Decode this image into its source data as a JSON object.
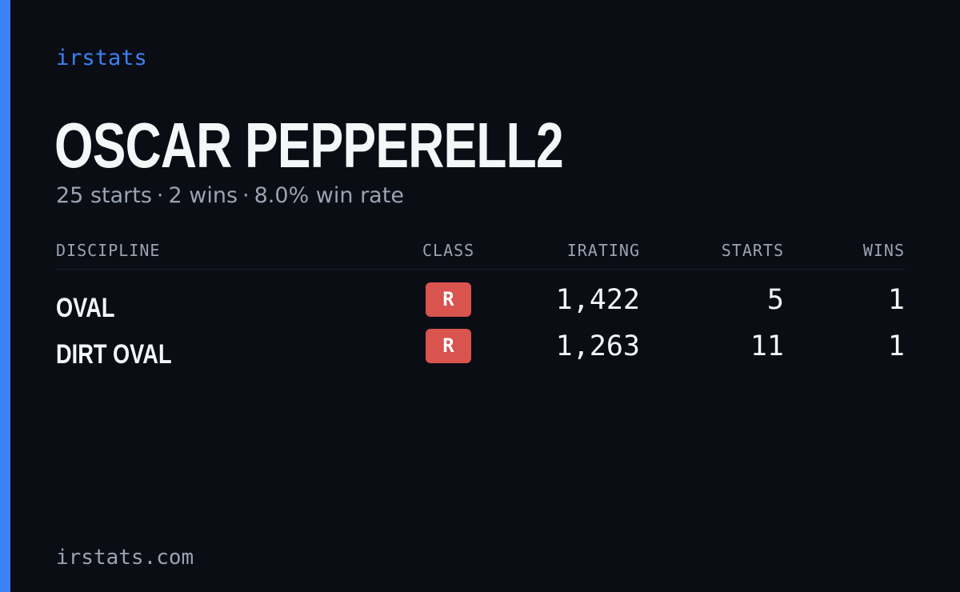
{
  "brand": "irstats",
  "player": {
    "name": "OSCAR PEPPERELL2"
  },
  "summary": {
    "starts": "25 starts",
    "wins": "2 wins",
    "win_rate": "8.0% win rate",
    "separator": "·"
  },
  "table": {
    "headers": {
      "discipline": "DISCIPLINE",
      "class": "CLASS",
      "irating": "IRATING",
      "starts": "STARTS",
      "wins": "WINS"
    },
    "rows": [
      {
        "discipline": "OVAL",
        "class": "R",
        "irating": "1,422",
        "starts": "5",
        "wins": "1"
      },
      {
        "discipline": "DIRT OVAL",
        "class": "R",
        "irating": "1,263",
        "starts": "11",
        "wins": "1"
      }
    ]
  },
  "footer": "irstats.com",
  "colors": {
    "background": "#0a0d14",
    "accent": "#3b82f6",
    "class_r_badge": "#d9534f",
    "muted_text": "#9aa3b2",
    "primary_text": "#f5f6f8"
  }
}
